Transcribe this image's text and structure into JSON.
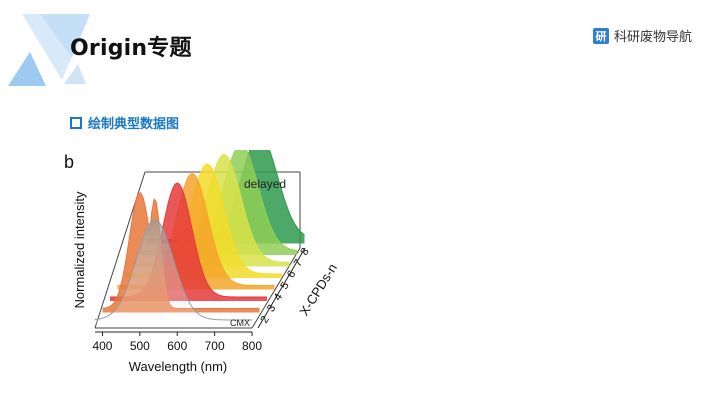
{
  "header": {
    "title": "Origin专题",
    "brand_icon_text": "研",
    "brand_text": "科研废物导航"
  },
  "section": {
    "label": "绘制典型数据图"
  },
  "figure": {
    "panel_label": "b",
    "series_tag": "delayed",
    "reference_tag": "CMX",
    "x_axis_label": "Wavelength (nm)",
    "x_ticks": [
      "400",
      "500",
      "600",
      "700",
      "800"
    ],
    "y_axis_label": "Normalized intensity",
    "depth_axis_label": "X-CPDs-n",
    "depth_ticks": [
      "2",
      "3",
      "4",
      "5",
      "6",
      "7",
      "8"
    ]
  },
  "colors": {
    "accent": "#1b78c7",
    "deco_light": "#cfe4f7",
    "deco_mid": "#9ccaf0"
  },
  "chart_data": {
    "type": "area",
    "title": "",
    "xlabel": "Wavelength (nm)",
    "ylabel": "Normalized intensity",
    "xlim": [
      380,
      800
    ],
    "series": [
      {
        "name": "CMX",
        "color": "#b8b8b8",
        "peak_nm": 540,
        "width_nm": 70
      },
      {
        "name": "2",
        "color": "#e8773a",
        "peak_nm": 480,
        "width_nm": 40,
        "shoulder_nm": 520
      },
      {
        "name": "3",
        "color": "#e53a3a",
        "peak_nm": 560,
        "width_nm": 55
      },
      {
        "name": "4",
        "color": "#f4a52a",
        "peak_nm": 580,
        "width_nm": 60
      },
      {
        "name": "5",
        "color": "#f2dc2a",
        "peak_nm": 600,
        "width_nm": 62
      },
      {
        "name": "6",
        "color": "#d8e24a",
        "peak_nm": 625,
        "width_nm": 64
      },
      {
        "name": "7",
        "color": "#8fce58",
        "peak_nm": 650,
        "width_nm": 66
      },
      {
        "name": "8",
        "color": "#2e9a4c",
        "peak_nm": 680,
        "width_nm": 68
      }
    ]
  }
}
